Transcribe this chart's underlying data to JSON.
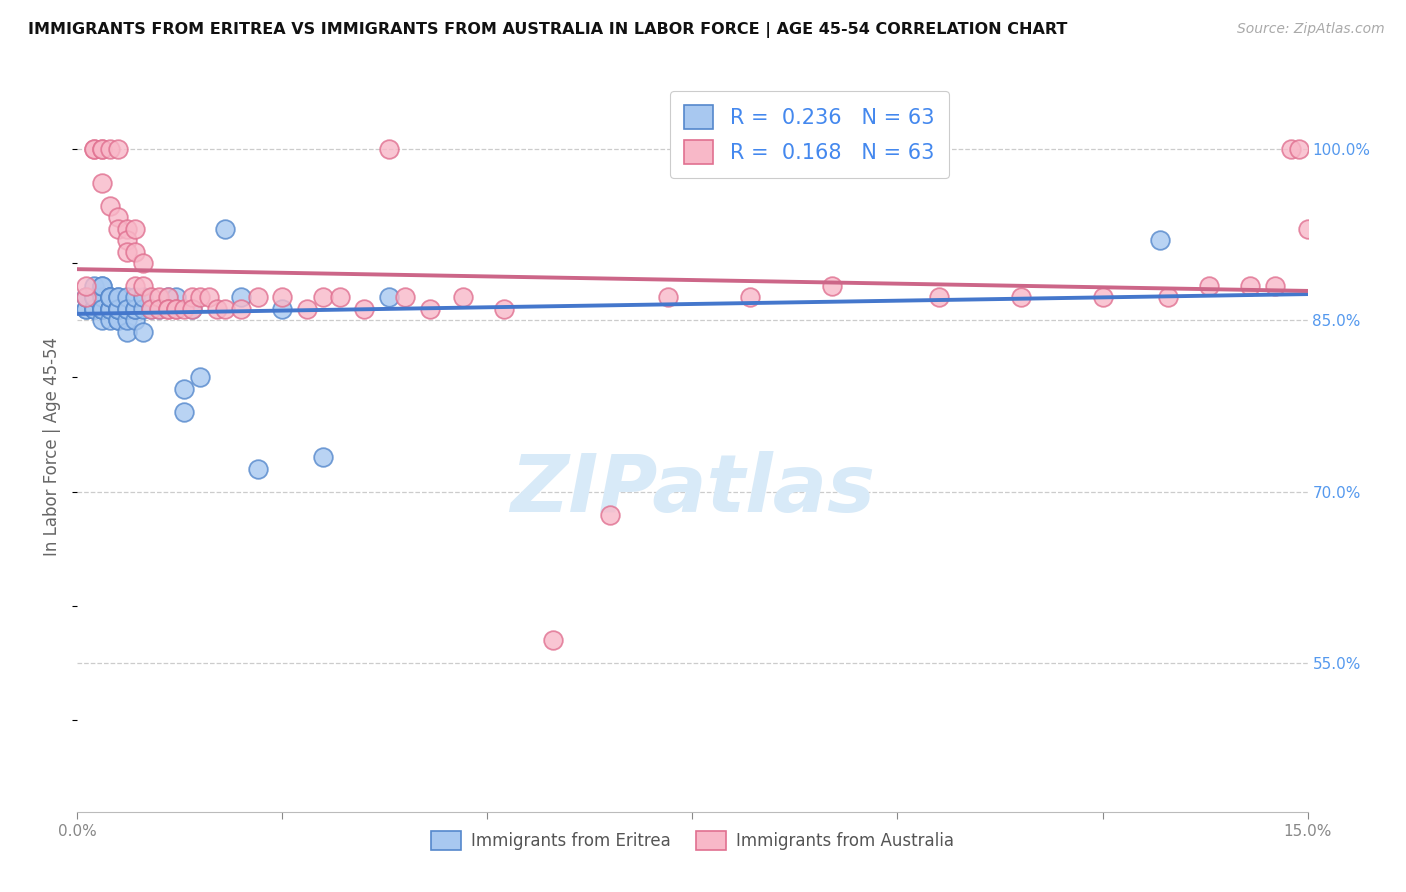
{
  "title": "IMMIGRANTS FROM ERITREA VS IMMIGRANTS FROM AUSTRALIA IN LABOR FORCE | AGE 45-54 CORRELATION CHART",
  "source": "Source: ZipAtlas.com",
  "ylabel": "In Labor Force | Age 45-54",
  "xmin": 0.0,
  "xmax": 0.15,
  "ymin": 0.42,
  "ymax": 1.06,
  "yticks": [
    0.55,
    0.7,
    0.85,
    1.0
  ],
  "ytick_labels": [
    "55.0%",
    "70.0%",
    "85.0%",
    "100.0%"
  ],
  "xticks": [
    0.0,
    0.025,
    0.05,
    0.075,
    0.1,
    0.125,
    0.15
  ],
  "xtick_labels": [
    "0.0%",
    "",
    "",
    "",
    "",
    "",
    "15.0%"
  ],
  "legend_r1": "0.236",
  "legend_n1": "63",
  "legend_r2": "0.168",
  "legend_n2": "63",
  "color_eritrea_fill": "#a8c8f0",
  "color_eritrea_edge": "#5588cc",
  "color_australia_fill": "#f8b8c8",
  "color_australia_edge": "#e07090",
  "color_line_eritrea": "#4477cc",
  "color_line_australia": "#cc6688",
  "watermark_color": "#d8eaf8",
  "eritrea_x": [
    0.001,
    0.001,
    0.001,
    0.001,
    0.002,
    0.002,
    0.002,
    0.002,
    0.002,
    0.002,
    0.002,
    0.003,
    0.003,
    0.003,
    0.003,
    0.003,
    0.003,
    0.003,
    0.003,
    0.004,
    0.004,
    0.004,
    0.004,
    0.004,
    0.004,
    0.004,
    0.004,
    0.004,
    0.005,
    0.005,
    0.005,
    0.005,
    0.005,
    0.005,
    0.005,
    0.005,
    0.006,
    0.006,
    0.006,
    0.006,
    0.006,
    0.007,
    0.007,
    0.007,
    0.007,
    0.008,
    0.008,
    0.008,
    0.009,
    0.01,
    0.011,
    0.012,
    0.013,
    0.013,
    0.014,
    0.015,
    0.018,
    0.02,
    0.022,
    0.025,
    0.03,
    0.038,
    0.132
  ],
  "eritrea_y": [
    0.86,
    0.86,
    0.87,
    0.87,
    0.86,
    0.86,
    0.87,
    0.87,
    0.86,
    0.87,
    0.88,
    0.85,
    0.86,
    0.86,
    0.86,
    0.87,
    0.86,
    0.88,
    0.88,
    0.86,
    0.86,
    0.85,
    0.86,
    0.87,
    0.87,
    0.86,
    0.87,
    0.87,
    0.85,
    0.85,
    0.86,
    0.86,
    0.86,
    0.87,
    0.86,
    0.87,
    0.84,
    0.85,
    0.86,
    0.87,
    0.86,
    0.85,
    0.86,
    0.86,
    0.87,
    0.84,
    0.86,
    0.87,
    0.86,
    0.86,
    0.87,
    0.87,
    0.77,
    0.79,
    0.86,
    0.8,
    0.93,
    0.87,
    0.72,
    0.86,
    0.73,
    0.87,
    0.92
  ],
  "australia_x": [
    0.001,
    0.001,
    0.002,
    0.002,
    0.003,
    0.003,
    0.003,
    0.004,
    0.004,
    0.005,
    0.005,
    0.005,
    0.006,
    0.006,
    0.006,
    0.007,
    0.007,
    0.007,
    0.008,
    0.008,
    0.009,
    0.009,
    0.01,
    0.01,
    0.011,
    0.011,
    0.011,
    0.012,
    0.012,
    0.013,
    0.014,
    0.014,
    0.015,
    0.016,
    0.017,
    0.018,
    0.02,
    0.022,
    0.025,
    0.028,
    0.03,
    0.032,
    0.035,
    0.038,
    0.04,
    0.043,
    0.047,
    0.052,
    0.058,
    0.065,
    0.072,
    0.082,
    0.092,
    0.105,
    0.115,
    0.125,
    0.133,
    0.138,
    0.143,
    0.146,
    0.148,
    0.149,
    0.15
  ],
  "australia_y": [
    0.87,
    0.88,
    1.0,
    1.0,
    1.0,
    1.0,
    0.97,
    1.0,
    0.95,
    1.0,
    0.94,
    0.93,
    0.93,
    0.92,
    0.91,
    0.93,
    0.91,
    0.88,
    0.9,
    0.88,
    0.87,
    0.86,
    0.87,
    0.86,
    0.87,
    0.86,
    0.86,
    0.86,
    0.86,
    0.86,
    0.87,
    0.86,
    0.87,
    0.87,
    0.86,
    0.86,
    0.86,
    0.87,
    0.87,
    0.86,
    0.87,
    0.87,
    0.86,
    1.0,
    0.87,
    0.86,
    0.87,
    0.86,
    0.57,
    0.68,
    0.87,
    0.87,
    0.88,
    0.87,
    0.87,
    0.87,
    0.87,
    0.88,
    0.88,
    0.88,
    1.0,
    1.0,
    0.93
  ]
}
